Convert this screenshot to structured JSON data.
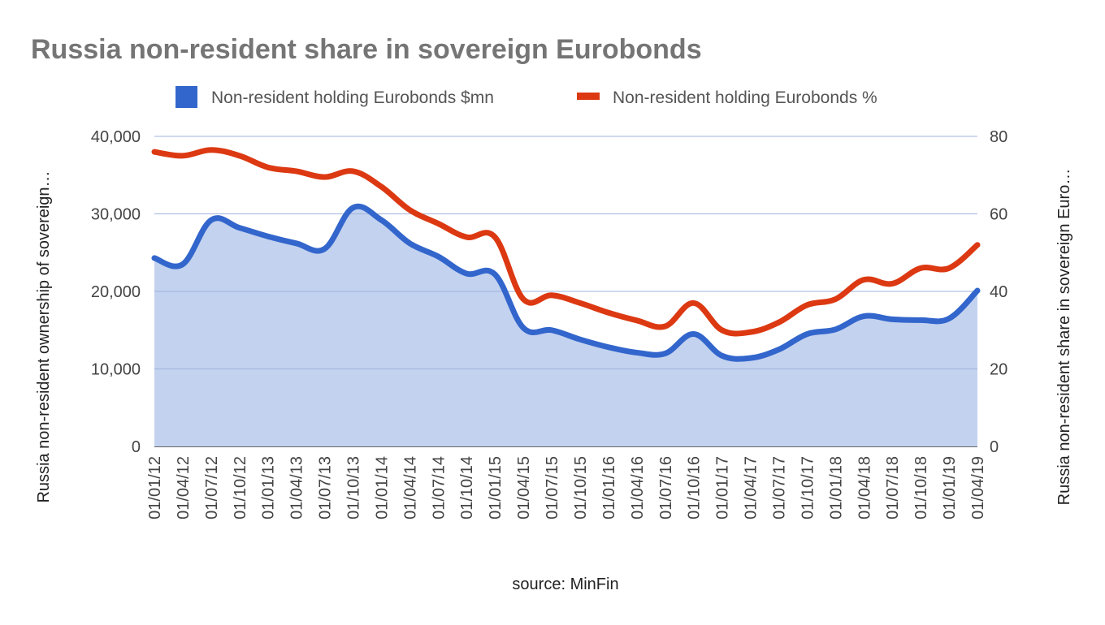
{
  "chart_data": {
    "type": "line",
    "title": "Russia non-resident share in sovereign Eurobonds",
    "source": "source: MinFin",
    "ylabel_left": "Russia non-resident ownership of sovereign…",
    "ylabel_right": "Russia non-resident share in sovereign Euro…",
    "legend_position": "top",
    "grid": true,
    "y_left": {
      "min": 0,
      "max": 40000,
      "ticks": [
        0,
        10000,
        20000,
        30000,
        40000
      ],
      "tick_labels": [
        "0",
        "10,000",
        "20,000",
        "30,000",
        "40,000"
      ]
    },
    "y_right": {
      "min": 0,
      "max": 80,
      "ticks": [
        0,
        20,
        40,
        60,
        80
      ],
      "tick_labels": [
        "0",
        "20",
        "40",
        "60",
        "80"
      ]
    },
    "categories": [
      "01/01/12",
      "01/04/12",
      "01/07/12",
      "01/10/12",
      "01/01/13",
      "01/04/13",
      "01/07/13",
      "01/10/13",
      "01/01/14",
      "01/04/14",
      "01/07/14",
      "01/10/14",
      "01/01/15",
      "01/04/15",
      "01/07/15",
      "01/10/15",
      "01/01/16",
      "01/04/16",
      "01/07/16",
      "01/10/16",
      "01/01/17",
      "01/04/17",
      "01/07/17",
      "01/10/17",
      "01/01/18",
      "01/04/18",
      "01/07/18",
      "01/10/18",
      "01/01/19",
      "01/04/19"
    ],
    "series": [
      {
        "name": "Non-resident holding Eurobonds $mn",
        "axis": "left",
        "style": "area",
        "color": "#3366cc",
        "fill": "#c3d2ef",
        "values": [
          24300,
          23500,
          29200,
          28200,
          27100,
          26200,
          25500,
          30800,
          29200,
          26200,
          24500,
          22300,
          22200,
          15300,
          15000,
          13800,
          12800,
          12100,
          12000,
          14500,
          11700,
          11400,
          12500,
          14500,
          15100,
          16800,
          16400,
          16300,
          16500,
          20100
        ]
      },
      {
        "name": "Non-resident holding Eurobonds %",
        "axis": "right",
        "style": "line",
        "color": "#dc3912",
        "values": [
          76,
          75,
          76.5,
          75,
          72,
          71,
          69.5,
          71,
          67,
          61,
          57.5,
          54,
          54,
          38,
          39,
          37,
          34.5,
          32.5,
          31,
          37,
          30,
          29.5,
          32,
          36.5,
          38,
          43,
          42,
          46,
          46,
          52
        ]
      }
    ]
  }
}
